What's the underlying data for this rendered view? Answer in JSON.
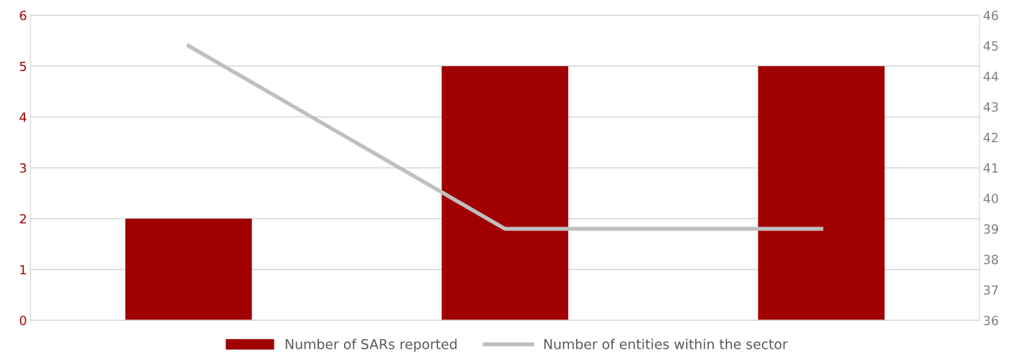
{
  "chart_data": {
    "type": "bar",
    "categories": [
      null,
      null,
      null
    ],
    "series": [
      {
        "name": "Number of SARs reported",
        "color": "#a00000",
        "values": [
          2,
          5,
          5
        ]
      },
      {
        "name": "Number of entities within the sector",
        "type": "line",
        "axis": "y2",
        "color": "#bfbfbf",
        "values": [
          45,
          39,
          39
        ]
      }
    ],
    "ylim": [
      0,
      6
    ],
    "yticks": [
      0,
      1,
      2,
      3,
      4,
      5,
      6
    ],
    "y2lim": [
      36,
      46
    ],
    "y2ticks": [
      36,
      37,
      38,
      39,
      40,
      41,
      42,
      43,
      44,
      45,
      46
    ],
    "grid": "y",
    "legend": "bottom",
    "marker": "none",
    "line_style": "solid"
  }
}
